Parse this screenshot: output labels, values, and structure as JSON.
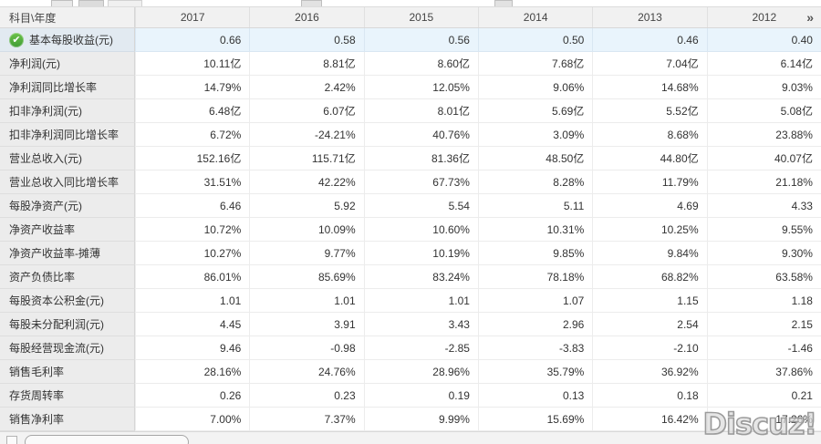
{
  "header": {
    "corner": "科目\\年度",
    "years": [
      "2017",
      "2016",
      "2015",
      "2014",
      "2013",
      "2012"
    ],
    "more_label": "»"
  },
  "table": {
    "rows": [
      {
        "label": "基本每股收益(元)",
        "highlighted": true,
        "checked": true,
        "values": [
          "0.66",
          "0.58",
          "0.56",
          "0.50",
          "0.46",
          "0.40"
        ]
      },
      {
        "label": "净利润(元)",
        "values": [
          "10.11亿",
          "8.81亿",
          "8.60亿",
          "7.68亿",
          "7.04亿",
          "6.14亿"
        ]
      },
      {
        "label": "净利润同比增长率",
        "values": [
          "14.79%",
          "2.42%",
          "12.05%",
          "9.06%",
          "14.68%",
          "9.03%"
        ]
      },
      {
        "label": "扣非净利润(元)",
        "values": [
          "6.48亿",
          "6.07亿",
          "8.01亿",
          "5.69亿",
          "5.52亿",
          "5.08亿"
        ]
      },
      {
        "label": "扣非净利润同比增长率",
        "values": [
          "6.72%",
          "-24.21%",
          "40.76%",
          "3.09%",
          "8.68%",
          "23.88%"
        ]
      },
      {
        "label": "营业总收入(元)",
        "values": [
          "152.16亿",
          "115.71亿",
          "81.36亿",
          "48.50亿",
          "44.80亿",
          "40.07亿"
        ]
      },
      {
        "label": "营业总收入同比增长率",
        "values": [
          "31.51%",
          "42.22%",
          "67.73%",
          "8.28%",
          "11.79%",
          "21.18%"
        ]
      },
      {
        "label": "每股净资产(元)",
        "values": [
          "6.46",
          "5.92",
          "5.54",
          "5.11",
          "4.69",
          "4.33"
        ]
      },
      {
        "label": "净资产收益率",
        "values": [
          "10.72%",
          "10.09%",
          "10.60%",
          "10.31%",
          "10.25%",
          "9.55%"
        ]
      },
      {
        "label": "净资产收益率-摊薄",
        "values": [
          "10.27%",
          "9.77%",
          "10.19%",
          "9.85%",
          "9.84%",
          "9.30%"
        ]
      },
      {
        "label": "资产负债比率",
        "values": [
          "86.01%",
          "85.69%",
          "83.24%",
          "78.18%",
          "68.82%",
          "63.58%"
        ]
      },
      {
        "label": "每股资本公积金(元)",
        "values": [
          "1.01",
          "1.01",
          "1.01",
          "1.07",
          "1.15",
          "1.18"
        ]
      },
      {
        "label": "每股未分配利润(元)",
        "values": [
          "4.45",
          "3.91",
          "3.43",
          "2.96",
          "2.54",
          "2.15"
        ]
      },
      {
        "label": "每股经营现金流(元)",
        "values": [
          "9.46",
          "-0.98",
          "-2.85",
          "-3.83",
          "-2.10",
          "-1.46"
        ]
      },
      {
        "label": "销售毛利率",
        "values": [
          "28.16%",
          "24.76%",
          "28.96%",
          "35.79%",
          "36.92%",
          "37.86%"
        ]
      },
      {
        "label": "存货周转率",
        "values": [
          "0.26",
          "0.23",
          "0.19",
          "0.13",
          "0.18",
          "0.21"
        ]
      },
      {
        "label": "销售净利率",
        "values": [
          "7.00%",
          "7.37%",
          "9.99%",
          "15.69%",
          "16.42%",
          "17.26%"
        ]
      }
    ]
  },
  "icons": {
    "check": "✔"
  },
  "colors": {
    "check_green": "#3f9c35",
    "highlight_row": "#e9f4fc",
    "header_bg": "#f1f1f1",
    "label_bg": "#ececec"
  },
  "watermark": "Discuz!"
}
